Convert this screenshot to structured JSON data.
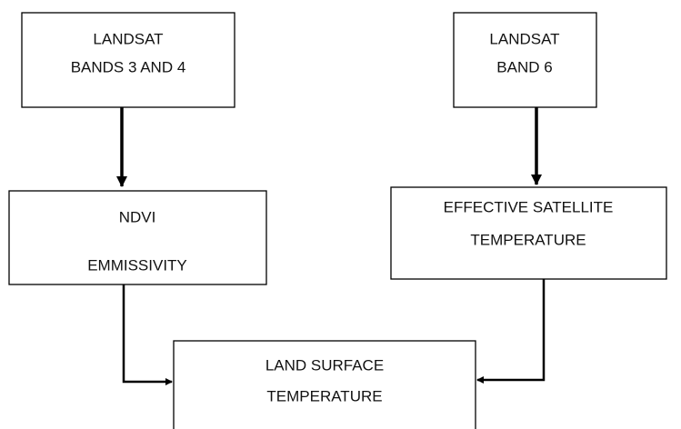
{
  "nodes": [
    {
      "lines": [
        "LANDSAT",
        "BANDS 3 AND 4"
      ]
    },
    {
      "lines": [
        "LANDSAT",
        "BAND 6"
      ]
    },
    {
      "lines": [
        "NDVI",
        "EMMISSIVITY"
      ]
    },
    {
      "lines": [
        "EFFECTIVE SATELLITE",
        "TEMPERATURE"
      ]
    },
    {
      "lines": [
        "LAND SURFACE",
        "TEMPERATURE"
      ]
    }
  ]
}
